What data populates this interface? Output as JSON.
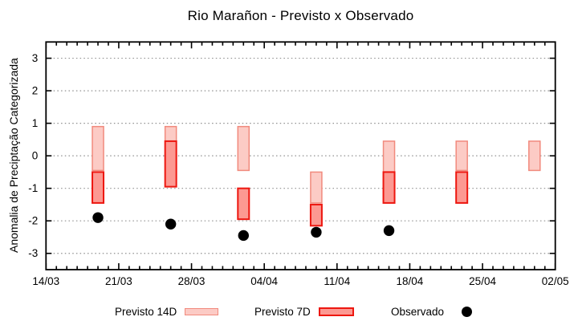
{
  "chart_data": {
    "type": "range-bar+scatter",
    "title": "Rio Marañon - Previsto x Observado",
    "xlabel": "",
    "ylabel": "Anomalia de Preciptação Categorizada",
    "ylim": [
      -3.5,
      3.5
    ],
    "yticks": [
      3,
      2,
      1,
      0,
      -1,
      -2,
      -3
    ],
    "grid": "dotted horizontal at integer y values",
    "legend_position": "bottom",
    "x_range_days": 49,
    "minor_xtick_every_days": 1,
    "xticks": [
      {
        "day": 0,
        "label": "14/03"
      },
      {
        "day": 7,
        "label": "21/03"
      },
      {
        "day": 14,
        "label": "28/03"
      },
      {
        "day": 21,
        "label": "04/04"
      },
      {
        "day": 28,
        "label": "11/04"
      },
      {
        "day": 35,
        "label": "18/04"
      },
      {
        "day": 42,
        "label": "25/04"
      },
      {
        "day": 49,
        "label": "02/05"
      }
    ],
    "series": [
      {
        "name": "Previsto 14D",
        "type": "range-bar",
        "fill": "#fccbc5",
        "border": "#f18a7d",
        "border_width": 1.5,
        "points": [
          {
            "date": "19/03",
            "day": 5,
            "top": 0.9,
            "bottom": -0.45
          },
          {
            "date": "26/03",
            "day": 12,
            "top": 0.9,
            "bottom": 0.45
          },
          {
            "date": "02/04",
            "day": 19,
            "top": 0.9,
            "bottom": -0.45
          },
          {
            "date": "09/04",
            "day": 26,
            "top": -0.5,
            "bottom": -1.45
          },
          {
            "date": "16/04",
            "day": 33,
            "top": 0.45,
            "bottom": -0.5
          },
          {
            "date": "23/04",
            "day": 40,
            "top": 0.45,
            "bottom": -0.45
          },
          {
            "date": "30/04",
            "day": 47,
            "top": 0.45,
            "bottom": -0.45
          }
        ]
      },
      {
        "name": "Previsto 7D",
        "type": "range-bar",
        "fill": "#fc9992",
        "border": "#ed1710",
        "border_width": 2,
        "points": [
          {
            "date": "19/03",
            "day": 5,
            "top": -0.5,
            "bottom": -1.45
          },
          {
            "date": "26/03",
            "day": 12,
            "top": 0.45,
            "bottom": -0.95
          },
          {
            "date": "02/04",
            "day": 19,
            "top": -1.0,
            "bottom": -1.95
          },
          {
            "date": "09/04",
            "day": 26,
            "top": -1.5,
            "bottom": -2.15
          },
          {
            "date": "16/04",
            "day": 33,
            "top": -0.5,
            "bottom": -1.45
          },
          {
            "date": "23/04",
            "day": 40,
            "top": -0.5,
            "bottom": -1.45
          }
        ]
      },
      {
        "name": "Observado",
        "type": "scatter",
        "marker": "circle",
        "color": "#000000",
        "points": [
          {
            "date": "19/03",
            "day": 5,
            "value": -1.9
          },
          {
            "date": "26/03",
            "day": 12,
            "value": -2.1
          },
          {
            "date": "02/04",
            "day": 19,
            "value": -2.45
          },
          {
            "date": "09/04",
            "day": 26,
            "value": -2.35
          },
          {
            "date": "16/04",
            "day": 33,
            "value": -2.3
          }
        ]
      }
    ],
    "style": {
      "grid_color": "#909090",
      "axis_color": "#000000",
      "background": "#ffffff"
    }
  }
}
